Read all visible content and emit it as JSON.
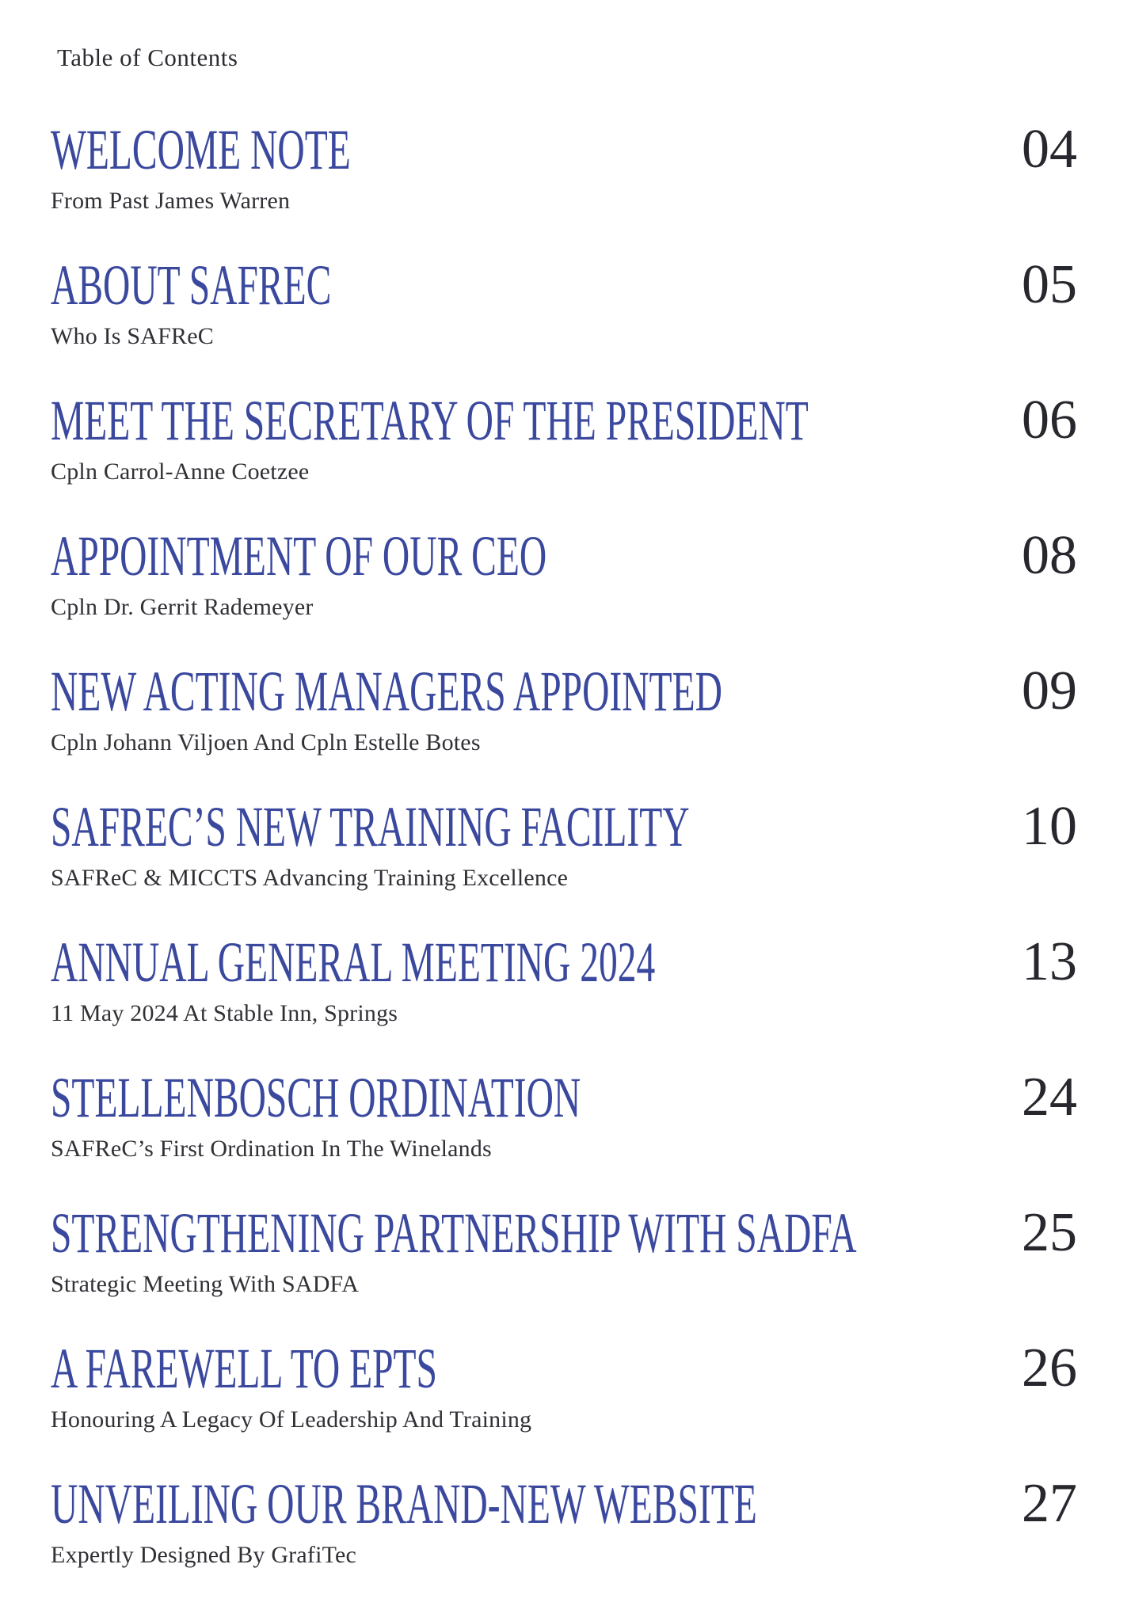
{
  "header": "Table of Contents",
  "colors": {
    "title_blue": "#3a489e",
    "page_number_dark": "#27272e",
    "subtitle_dark": "#303036",
    "background": "#ffffff"
  },
  "entries": [
    {
      "title": "WELCOME NOTE",
      "subtitle": "From Past James Warren",
      "page": "04"
    },
    {
      "title": "ABOUT SAFREC",
      "subtitle": "Who Is SAFReC",
      "page": "05"
    },
    {
      "title": "MEET THE SECRETARY OF THE PRESIDENT",
      "subtitle": "Cpln Carrol-Anne Coetzee",
      "page": "06"
    },
    {
      "title": "APPOINTMENT OF OUR CEO",
      "subtitle": "Cpln Dr. Gerrit Rademeyer",
      "page": "08"
    },
    {
      "title": "NEW ACTING MANAGERS APPOINTED",
      "subtitle": "Cpln Johann Viljoen And Cpln Estelle Botes",
      "page": "09"
    },
    {
      "title": "SAFREC’S NEW TRAINING FACILITY",
      "subtitle": "SAFReC & MICCTS Advancing Training Excellence",
      "page": "10"
    },
    {
      "title": "ANNUAL GENERAL MEETING 2024",
      "subtitle": "11 May 2024 At Stable Inn, Springs",
      "page": "13"
    },
    {
      "title": "STELLENBOSCH ORDINATION",
      "subtitle": "SAFReC’s First Ordination In The Winelands",
      "page": "24"
    },
    {
      "title": "STRENGTHENING PARTNERSHIP WITH SADFA",
      "subtitle": "Strategic Meeting With SADFA",
      "page": "25"
    },
    {
      "title": "A FAREWELL TO EPTS",
      "subtitle": "Honouring A Legacy Of Leadership And Training",
      "page": "26"
    },
    {
      "title": "UNVEILING OUR BRAND-NEW WEBSITE",
      "subtitle": "Expertly Designed By GrafiTec",
      "page": "27"
    }
  ]
}
